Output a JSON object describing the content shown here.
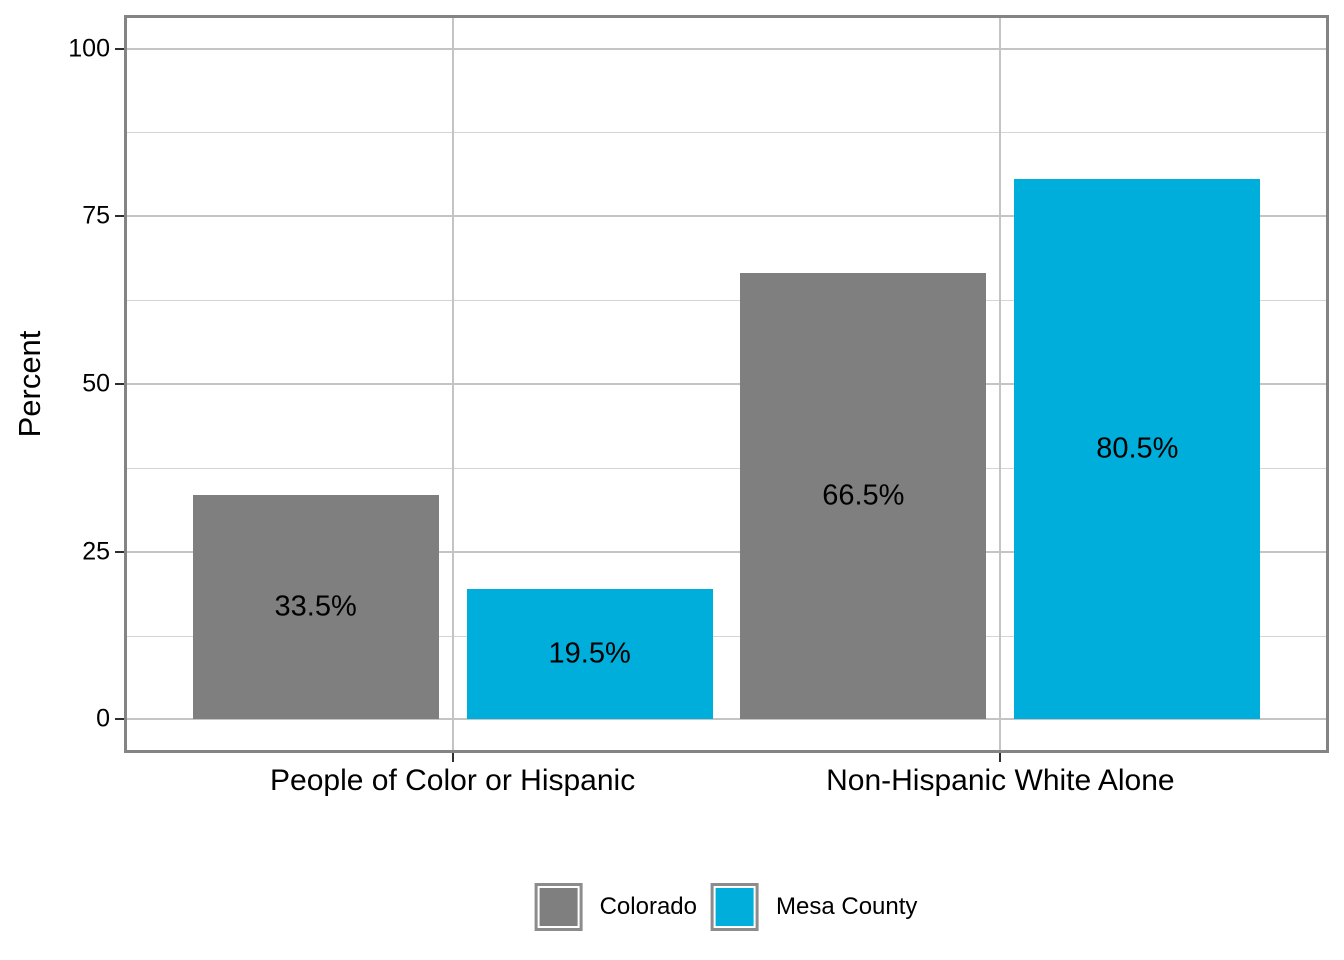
{
  "chart_data": {
    "type": "bar",
    "ylabel": "Percent",
    "categories": [
      "People of Color or Hispanic",
      "Non-Hispanic White Alone"
    ],
    "series": [
      {
        "name": "Colorado",
        "color": "#7F7F7F",
        "values": [
          33.5,
          66.5
        ],
        "labels": [
          "33.5%",
          "66.5%"
        ]
      },
      {
        "name": "Mesa County",
        "color": "#00AEDB",
        "values": [
          19.5,
          80.5
        ],
        "labels": [
          "19.5%",
          "80.5%"
        ]
      }
    ],
    "y_axis": {
      "ticks": [
        0,
        25,
        50,
        75,
        100
      ],
      "tick_labels": [
        "0",
        "25",
        "50",
        "75",
        "100"
      ],
      "minor_ticks": [
        12.5,
        37.5,
        62.5,
        87.5
      ],
      "range": [
        -5,
        105
      ]
    },
    "legend": {
      "position": "bottom",
      "entries": [
        {
          "label": "Colorado",
          "color": "#7F7F7F"
        },
        {
          "label": "Mesa County",
          "color": "#00AEDB"
        }
      ]
    },
    "grid": {
      "major": true,
      "minor": true
    },
    "bar_label_position": "middle"
  },
  "style": {
    "panel_border_color": "#848484",
    "grid_major_color": "#C4C4C4",
    "grid_minor_color": "#D4D4D4",
    "tick_color": "#2E2E2E",
    "text_color": "#000000",
    "legend_key_border_color": "#8C8C8C",
    "background": "#FFFFFF"
  }
}
